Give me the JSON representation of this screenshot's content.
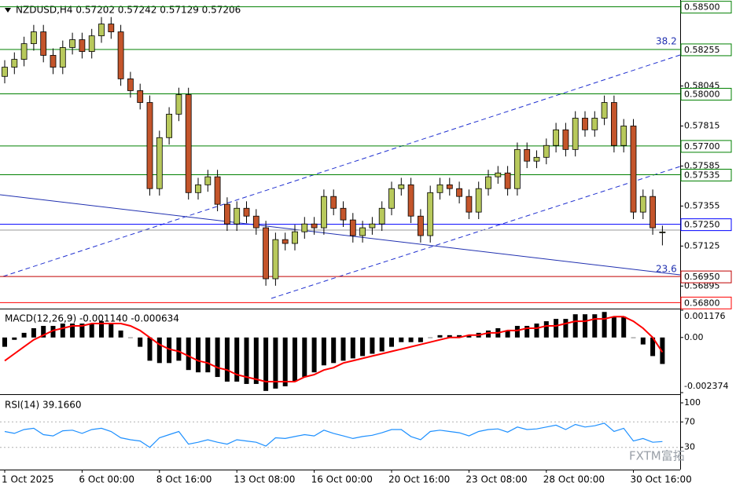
{
  "chart_data": [
    {
      "type": "candlestick",
      "title": "NZDUSD,H4  0.57202 0.57242 0.57129 0.57206",
      "up_color": "#b8c95c",
      "down_color": "#c4552b",
      "ylim": [
        0.5677,
        0.5853
      ],
      "yticks": [
        0.56895,
        0.57125,
        0.57355,
        0.57585,
        0.57815,
        0.58045
      ],
      "levels": [
        {
          "value": 0.585,
          "label": "0.58500",
          "color": "#008000"
        },
        {
          "value": 0.58255,
          "label": "0.58255",
          "color": "#008000"
        },
        {
          "value": 0.58,
          "label": "0.58000",
          "color": "#008000"
        },
        {
          "value": 0.577,
          "label": "0.57700",
          "color": "#008000"
        },
        {
          "value": 0.57535,
          "label": "0.57535",
          "color": "#008000"
        },
        {
          "value": 0.5725,
          "label": "0.57250",
          "color": "#0000ff"
        },
        {
          "value": 0.5695,
          "label": "0.56950",
          "color": "#c00000"
        },
        {
          "value": 0.568,
          "label": "0.56800",
          "color": "#ff0000"
        }
      ],
      "annotations": [
        "38.2",
        "23.6"
      ],
      "watermark": "FXTM富拓",
      "categories": [
        "1 Oct 2025",
        null,
        null,
        null,
        null,
        null,
        null,
        null,
        "6 Oct 00:00",
        null,
        null,
        null,
        null,
        null,
        null,
        null,
        "8 Oct 16:00",
        null,
        null,
        null,
        null,
        null,
        null,
        null,
        "13 Oct 08:00",
        null,
        null,
        null,
        null,
        null,
        null,
        null,
        "16 Oct 00:00",
        null,
        null,
        null,
        null,
        null,
        null,
        null,
        "20 Oct 16:00",
        null,
        null,
        null,
        null,
        null,
        null,
        null,
        "23 Oct 08:00",
        null,
        null,
        null,
        null,
        null,
        null,
        null,
        "28 Oct 00:00",
        null,
        null,
        null,
        null,
        null,
        null,
        null,
        null,
        "30 Oct 16:00",
        null,
        null,
        null
      ],
      "open": [
        0.581,
        0.58153,
        0.58198,
        0.58288,
        0.58356,
        0.58221,
        0.58153,
        0.58266,
        0.58311,
        0.58243,
        0.58333,
        0.58401,
        0.58356,
        0.58086,
        0.58018,
        0.5795,
        0.57455,
        0.57748,
        0.57883,
        0.57995,
        0.57432,
        0.57477,
        0.57523,
        0.57365,
        0.57252,
        0.57342,
        0.57297,
        0.5723,
        0.56937,
        0.57162,
        0.5714,
        0.57207,
        0.57252,
        0.5723,
        0.5741,
        0.57342,
        0.57275,
        0.57185,
        0.5723,
        0.57252,
        0.57342,
        0.57455,
        0.57477,
        0.57297,
        0.57185,
        0.57432,
        0.57477,
        0.57455,
        0.5741,
        0.5732,
        0.57455,
        0.57523,
        0.57545,
        0.57455,
        0.5768,
        0.57613,
        0.57635,
        0.57703,
        0.57793,
        0.5768,
        0.5786,
        0.57793,
        0.5786,
        0.5795,
        0.57703,
        0.57815,
        0.5732,
        0.5741,
        0.57202
      ],
      "high": [
        0.58193,
        0.58238,
        0.58328,
        0.58396,
        0.58396,
        0.58261,
        0.58306,
        0.58351,
        0.58351,
        0.58373,
        0.58441,
        0.58441,
        0.58396,
        0.58126,
        0.58058,
        0.5799,
        0.57788,
        0.57923,
        0.58035,
        0.58035,
        0.57517,
        0.57563,
        0.57563,
        0.57405,
        0.57382,
        0.57382,
        0.57337,
        0.5727,
        0.57202,
        0.57202,
        0.57247,
        0.57292,
        0.57292,
        0.5745,
        0.5745,
        0.57382,
        0.57315,
        0.5727,
        0.57292,
        0.57382,
        0.57495,
        0.57517,
        0.57517,
        0.57337,
        0.57472,
        0.57517,
        0.57517,
        0.57495,
        0.5745,
        0.57495,
        0.57563,
        0.57585,
        0.57585,
        0.5772,
        0.5772,
        0.57675,
        0.57743,
        0.57833,
        0.57833,
        0.579,
        0.579,
        0.579,
        0.5799,
        0.5799,
        0.57855,
        0.57855,
        0.5745,
        0.5745,
        0.57242
      ],
      "low": [
        0.5806,
        0.58113,
        0.58158,
        0.58248,
        0.58181,
        0.58113,
        0.58113,
        0.58226,
        0.58203,
        0.58203,
        0.58293,
        0.58316,
        0.58046,
        0.57978,
        0.5791,
        0.57415,
        0.57415,
        0.57708,
        0.57843,
        0.57392,
        0.57392,
        0.57437,
        0.57325,
        0.57212,
        0.57212,
        0.57257,
        0.5719,
        0.56897,
        0.56897,
        0.571,
        0.571,
        0.57167,
        0.5719,
        0.5719,
        0.57302,
        0.57235,
        0.57145,
        0.57145,
        0.5719,
        0.57212,
        0.57302,
        0.57415,
        0.57257,
        0.57145,
        0.57145,
        0.57392,
        0.57415,
        0.5737,
        0.5728,
        0.5728,
        0.57415,
        0.57483,
        0.57415,
        0.57415,
        0.57573,
        0.57573,
        0.57595,
        0.57663,
        0.5764,
        0.5764,
        0.57753,
        0.57753,
        0.5782,
        0.57663,
        0.57663,
        0.5728,
        0.5728,
        0.5719,
        0.57129
      ],
      "close": [
        0.58153,
        0.58198,
        0.58288,
        0.58356,
        0.58221,
        0.58153,
        0.58266,
        0.58311,
        0.58243,
        0.58333,
        0.58401,
        0.58356,
        0.58086,
        0.58018,
        0.5795,
        0.57455,
        0.57748,
        0.57883,
        0.57995,
        0.57432,
        0.57477,
        0.57523,
        0.57365,
        0.57252,
        0.57342,
        0.57297,
        0.5723,
        0.56937,
        0.57162,
        0.5714,
        0.57207,
        0.57252,
        0.5723,
        0.5741,
        0.57342,
        0.57275,
        0.57185,
        0.5723,
        0.57252,
        0.57342,
        0.57455,
        0.57477,
        0.57297,
        0.57185,
        0.57432,
        0.57477,
        0.57455,
        0.5741,
        0.5732,
        0.57455,
        0.57523,
        0.57545,
        0.57455,
        0.5768,
        0.57613,
        0.57635,
        0.57703,
        0.57793,
        0.5768,
        0.5786,
        0.57793,
        0.5786,
        0.5795,
        0.57703,
        0.57815,
        0.5732,
        0.5741,
        0.5723,
        0.57206
      ]
    },
    {
      "type": "macd",
      "title": "MACD(12,26,9) -0.001140 -0.000634",
      "ylim": [
        -0.002374,
        0.001176
      ],
      "yticks": [
        0.001176,
        {
          "value": 0,
          "label": "0.00"
        },
        -0.002374
      ],
      "series": [
        {
          "name": "MACD",
          "color": "#000000",
          "values": [
            -0.0004,
            -0.0001,
            0.0002,
            0.0004,
            0.0005,
            0.0005,
            0.0006,
            0.0006,
            0.0006,
            0.0006,
            0.0007,
            0.0006,
            0.0003,
            0.0,
            -0.0004,
            -0.001,
            -0.0011,
            -0.0011,
            -0.001,
            -0.0014,
            -0.0015,
            -0.0015,
            -0.0017,
            -0.0019,
            -0.0019,
            -0.002,
            -0.002,
            -0.0023,
            -0.0022,
            -0.0021,
            -0.0019,
            -0.0017,
            -0.0015,
            -0.0012,
            -0.0011,
            -0.001,
            -0.0009,
            -0.0008,
            -0.0007,
            -0.0006,
            -0.0004,
            -0.0002,
            -0.0002,
            -0.0002,
            0.0,
            0.0001,
            0.0001,
            0.0001,
            0.0001,
            0.0002,
            0.0003,
            0.0004,
            0.0003,
            0.0005,
            0.0005,
            0.0006,
            0.0007,
            0.0008,
            0.0008,
            0.001,
            0.001,
            0.001,
            0.0011,
            0.0009,
            0.0009,
            0.0,
            -0.0003,
            -0.0008,
            -0.00114
          ]
        },
        {
          "name": "Signal",
          "color": "#ff0000",
          "values": [
            -0.001,
            -0.0007,
            -0.0004,
            -0.0001,
            0.0001,
            0.0003,
            0.0004,
            0.0005,
            0.0005,
            0.0006,
            0.0006,
            0.0006,
            0.0006,
            0.0005,
            0.0003,
            0.0,
            -0.0003,
            -0.0005,
            -0.0006,
            -0.0008,
            -0.001,
            -0.0011,
            -0.0013,
            -0.0014,
            -0.0016,
            -0.0017,
            -0.0018,
            -0.0019,
            -0.0019,
            -0.0019,
            -0.0019,
            -0.0017,
            -0.0016,
            -0.0014,
            -0.0013,
            -0.0011,
            -0.001,
            -0.0009,
            -0.0008,
            -0.0007,
            -0.0006,
            -0.0005,
            -0.0004,
            -0.0003,
            -0.0002,
            -0.0001,
            0.0,
            0.0,
            0.0001,
            0.0001,
            0.0002,
            0.0002,
            0.0003,
            0.0003,
            0.0004,
            0.0004,
            0.0005,
            0.0005,
            0.0006,
            0.0007,
            0.0007,
            0.0008,
            0.0008,
            0.0009,
            0.0009,
            0.0007,
            0.0004,
            0.0,
            -0.000634
          ]
        }
      ]
    },
    {
      "type": "line",
      "title": "RSI(14) 39.1660",
      "ylim": [
        0,
        100
      ],
      "yticks": [
        100,
        70,
        30
      ],
      "grid": [
        70,
        30
      ],
      "color": "#1e90ff",
      "values": [
        55,
        52,
        58,
        60,
        50,
        48,
        56,
        57,
        52,
        58,
        60,
        55,
        45,
        42,
        40,
        30,
        45,
        50,
        55,
        35,
        38,
        42,
        38,
        35,
        42,
        40,
        38,
        32,
        45,
        44,
        47,
        50,
        48,
        57,
        52,
        48,
        44,
        47,
        49,
        53,
        58,
        58,
        47,
        42,
        55,
        57,
        55,
        53,
        48,
        55,
        58,
        59,
        54,
        62,
        58,
        59,
        62,
        65,
        58,
        66,
        62,
        64,
        68,
        55,
        60,
        40,
        44,
        38,
        39.166
      ]
    }
  ]
}
